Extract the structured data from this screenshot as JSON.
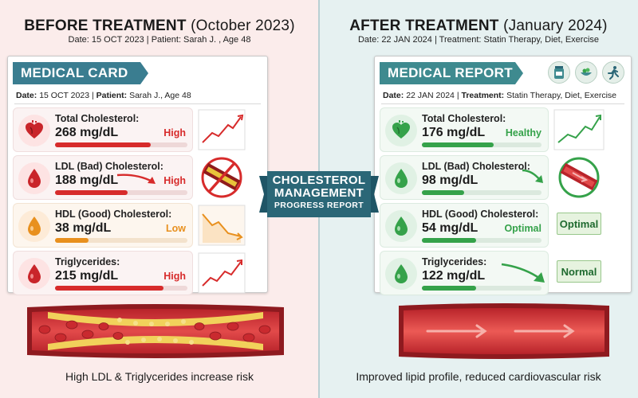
{
  "colors": {
    "high_red": "#d72b2b",
    "low_orange": "#e8901e",
    "healthy_green": "#35a24a",
    "teal_header": "#2b6777"
  },
  "before": {
    "title": "BEFORE TREATMENT",
    "title_paren": "(October 2023)",
    "subtitle": "Date: 15 OCT 2023  |  Patient: Sarah J. , Age 48",
    "card": {
      "header": "MEDICAL CARD",
      "date_label": "Date:",
      "date_value": "15 OCT 2023",
      "sep": "|",
      "patient_label": "Patient:",
      "patient_value": "Sarah J., Age 48"
    },
    "metrics": [
      {
        "label": "Total Cholesterol:",
        "value": "268 mg/dL",
        "status": "High",
        "icon": "heart-icon",
        "fill": 0.72
      },
      {
        "label": "LDL (Bad) Cholesterol:",
        "value": "188 mg/dL",
        "status": "High",
        "icon": "blood-drop-icon",
        "fill": 0.55
      },
      {
        "label": "HDL (Good) Cholesterol:",
        "value": "38 mg/dL",
        "status": "Low",
        "icon": "blood-drop-icon",
        "fill": 0.25
      },
      {
        "label": "Triglycerides:",
        "value": "215 mg/dL",
        "status": "High",
        "icon": "blood-drop-icon",
        "fill": 0.82
      }
    ],
    "caption": "High LDL & Triglycerides increase risk"
  },
  "after": {
    "title": "AFTER TREATMENT",
    "title_paren": "(January 2024)",
    "subtitle": "Date: 22 JAN 2024 | Treatment: Statin Therapy, Diet, Exercise",
    "card": {
      "header": "MEDICAL REPORT",
      "date_label": "Date:",
      "date_value": "22 JAN 2024",
      "sep": "|",
      "treatment_label": "Treatment:",
      "treatment_value": "Statin Therapy, Diet, Exercise",
      "icons": [
        "pill-bottle-icon",
        "healthy-food-icon",
        "running-person-icon"
      ]
    },
    "metrics": [
      {
        "label": "Total Cholesterol:",
        "value": "176 mg/dL",
        "status": "Healthy",
        "icon": "heart-icon",
        "fill": 0.6
      },
      {
        "label": "LDL (Bad) Cholesterol:",
        "value": "98 mg/dL",
        "status": "",
        "icon": "blood-drop-icon",
        "fill": 0.35
      },
      {
        "label": "HDL (Good) Cholesterol:",
        "value": "54 mg/dL",
        "status": "Optimal",
        "icon": "blood-drop-icon",
        "fill": 0.45,
        "badge": "Optimal"
      },
      {
        "label": "Triglycerides:",
        "value": "122 mg/dL",
        "status": "",
        "icon": "blood-drop-icon",
        "fill": 0.45,
        "badge": "Normal"
      }
    ],
    "caption": "Improved lipid profile, reduced cardiovascular risk"
  },
  "center": {
    "line1": "CHOLESTEROL",
    "line2": "MANAGEMENT",
    "line3": "PROGRESS REPORT"
  }
}
